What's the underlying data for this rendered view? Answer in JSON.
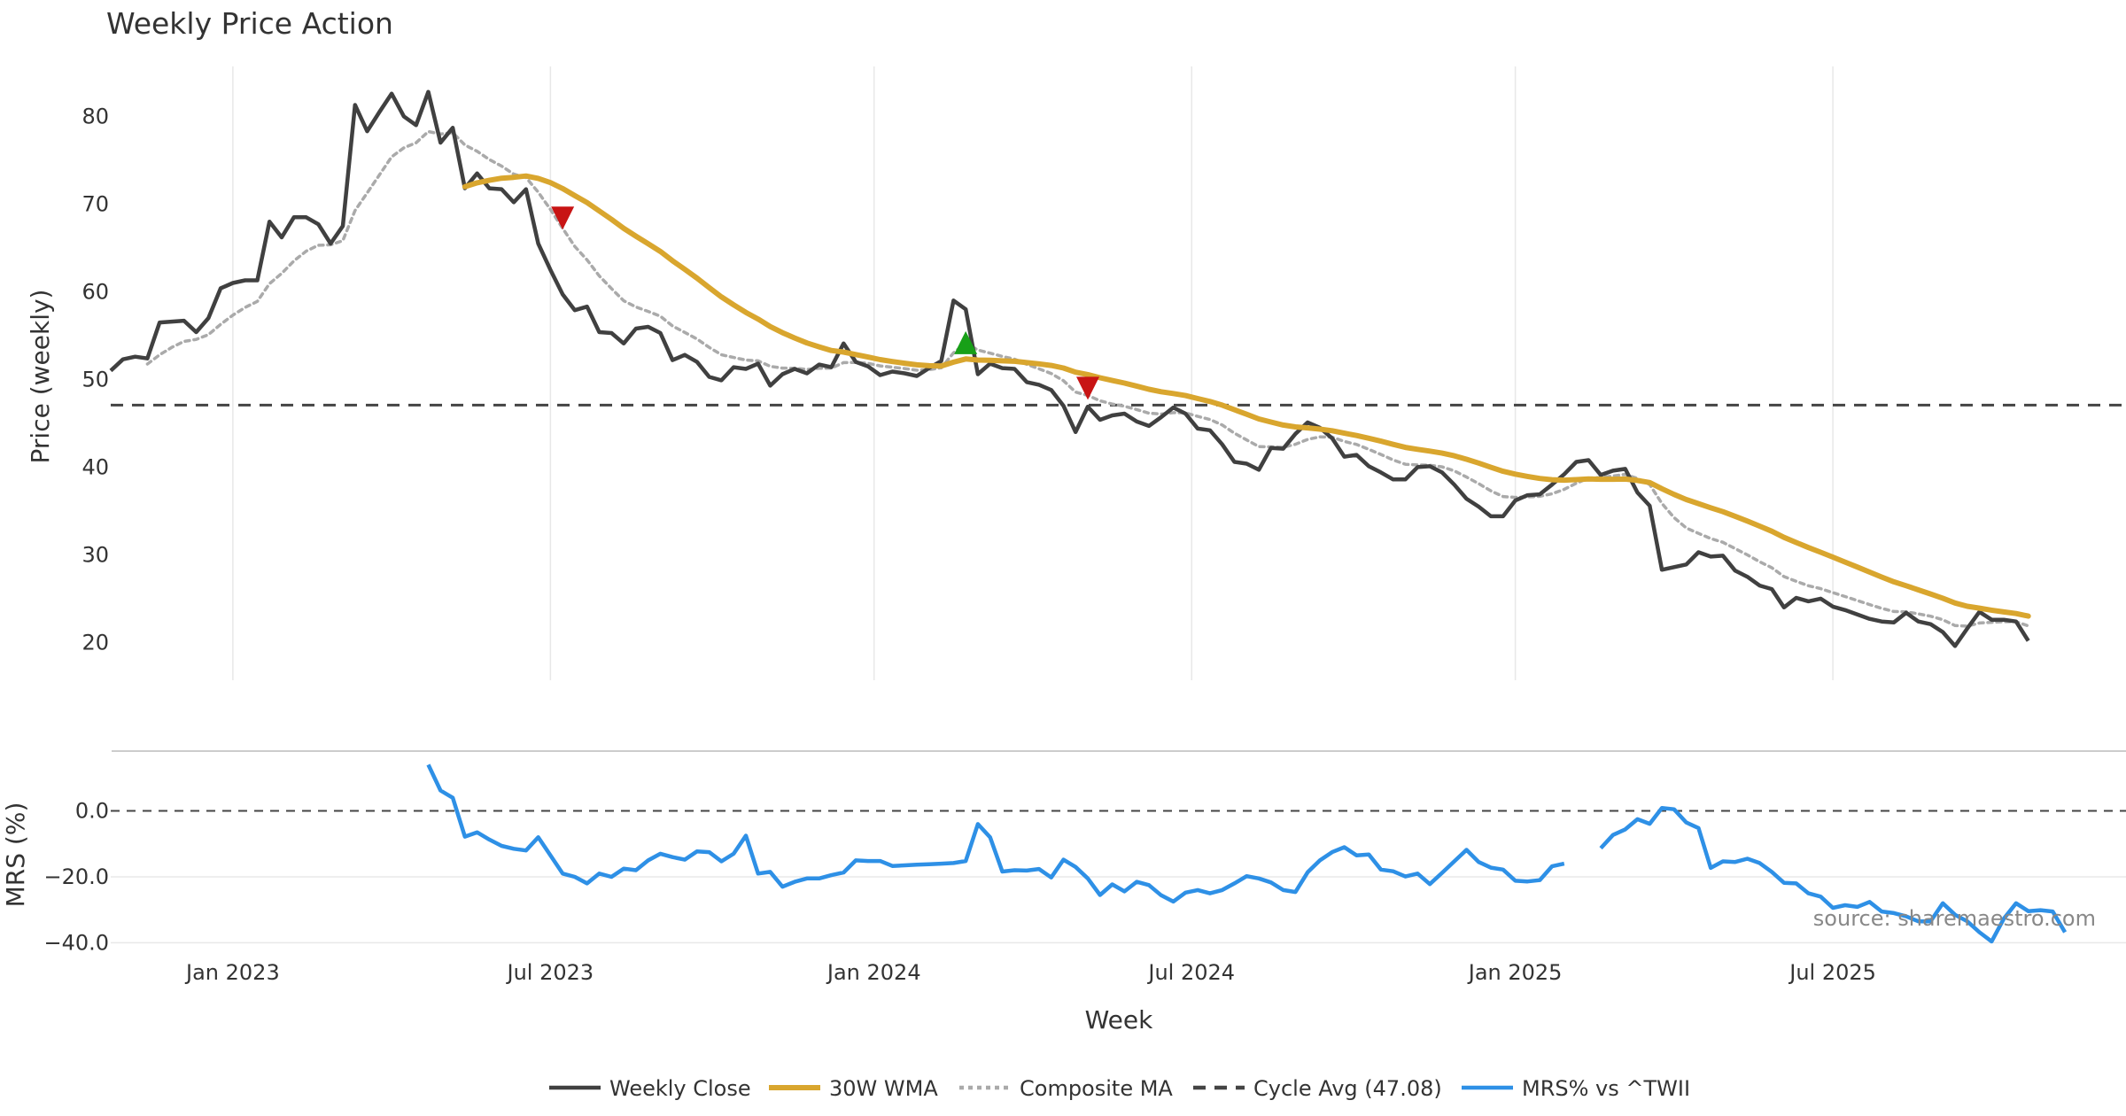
{
  "chart_data": {
    "type": "line",
    "title": "Weekly Price Action",
    "xlabel": "Week",
    "colors": {
      "close": "#404040",
      "wma": "#d9a62e",
      "composite": "#aaaaaa",
      "cycle": "#444444",
      "mrs": "#2e90e6",
      "sell_marker": "#c81414",
      "buy_marker": "#18a018"
    },
    "x_ticks": [
      {
        "label": "Jan 2023",
        "week": 10
      },
      {
        "label": "Jul 2023",
        "week": 36
      },
      {
        "label": "Jan 2024",
        "week": 62.5
      },
      {
        "label": "Jul 2024",
        "week": 88.5
      },
      {
        "label": "Jan 2025",
        "week": 115
      },
      {
        "label": "Jul 2025",
        "week": 141
      }
    ],
    "price_panel": {
      "ylabel": "Price (weekly)",
      "ylim": [
        15.5,
        86
      ],
      "yticks": [
        20,
        30,
        40,
        50,
        60,
        70,
        80
      ],
      "weekly_close": [
        51,
        52.3,
        52.6,
        52.4,
        56.5,
        56.6,
        56.7,
        55.4,
        57,
        60.4,
        61,
        61.3,
        61.3,
        68,
        66.2,
        68.5,
        68.5,
        67.7,
        65.5,
        67.5,
        81.3,
        78.3,
        80.5,
        82.6,
        80,
        79,
        82.8,
        77,
        78.7,
        71.8,
        73.5,
        71.8,
        71.7,
        70.2,
        71.7,
        65.5,
        62.5,
        59.7,
        57.9,
        58.3,
        55.4,
        55.3,
        54.1,
        55.8,
        56,
        55.3,
        52.2,
        52.8,
        52,
        50.3,
        49.9,
        51.4,
        51.2,
        51.8,
        49.3,
        50.6,
        51.2,
        50.7,
        51.7,
        51.4,
        54.1,
        52,
        51.5,
        50.5,
        50.9,
        50.7,
        50.4,
        51.3,
        52.1,
        59,
        58,
        50.6,
        51.8,
        51.3,
        51.2,
        49.7,
        49.4,
        48.8,
        47,
        44,
        46.9,
        45.4,
        45.9,
        46.1,
        45.2,
        44.7,
        45.7,
        46.8,
        46.1,
        44.4,
        44.2,
        42.6,
        40.6,
        40.4,
        39.7,
        42.2,
        42.1,
        43.8,
        45.1,
        44.5,
        43.3,
        41.2,
        41.4,
        40.1,
        39.4,
        38.6,
        38.6,
        40,
        40.1,
        39.4,
        38,
        36.4,
        35.5,
        34.4,
        34.4,
        36.2,
        36.8,
        36.9,
        38,
        39.2,
        40.6,
        40.8,
        39.1,
        39.6,
        39.8,
        37.1,
        35.6,
        28.3,
        28.6,
        28.9,
        30.3,
        29.8,
        29.9,
        28.2,
        27.5,
        26.5,
        26.1,
        24,
        25.1,
        24.7,
        25,
        24.1,
        23.7,
        23.2,
        22.7,
        22.4,
        22.3,
        23.4,
        22.4,
        22.1,
        21.2,
        19.6,
        21.6,
        23.5,
        22.6,
        22.6,
        22.4,
        20.2
      ]
    },
    "mrs_panel": {
      "ylabel": "MRS (%)",
      "ylim": [
        -41.5,
        16
      ],
      "yticks": [
        0,
        -20,
        -40
      ],
      "ytick_labels": [
        "0.0",
        "−20.0",
        "−40.0"
      ],
      "mrs_start_week": 26,
      "mrs_values": [
        14,
        6.2,
        4,
        -7.8,
        -6.5,
        -8.7,
        -10.6,
        -11.5,
        -12,
        -8,
        -13.5,
        -19,
        -20,
        -22,
        -19,
        -20,
        -17.5,
        -18,
        -15,
        -13,
        -14,
        -14.8,
        -12.3,
        -12.5,
        -15.3,
        -13,
        -7.5,
        -19,
        -18.5,
        -23,
        -21.5,
        -20.5,
        -20.5,
        -19.5,
        -18.7,
        -15,
        -15.2,
        -15.2,
        -16.7,
        -16.5,
        -16.3,
        -16.2,
        -16,
        -15.8,
        -15.2,
        -4,
        -8,
        -18.4,
        -18,
        -18.1,
        -17.6,
        -20.2,
        -14.8,
        -17,
        -20.5,
        -25.5,
        -22.3,
        -24.4,
        -21.5,
        -22.5,
        -25.6,
        -27.5,
        -24.8,
        -24,
        -25,
        -24,
        -22,
        -19.8,
        -20.5,
        -21.7,
        -24,
        -24.6,
        -18.6,
        -15,
        -12.5,
        -11,
        -13.5,
        -13.2,
        -17.8,
        -18.3,
        -19.9,
        -19,
        -22.2,
        -18.8,
        -15.3,
        -11.8,
        -15.5,
        -17.2,
        -17.8,
        -21.2,
        -21.4,
        -21,
        -16.8,
        -16,
        null,
        null,
        -11.3,
        -7.3,
        -5.6,
        -2.5,
        -3.9,
        0.9,
        0.5,
        -3.5,
        -5.2,
        -17.3,
        -15.3,
        -15.5,
        -14.5,
        -15.8,
        -18.5,
        -21.8,
        -22,
        -25,
        -26,
        -29.4,
        -28.6,
        -29.1,
        -27.6,
        -30.5,
        -31,
        -32,
        -33.5,
        -33.5,
        -28,
        -31.5,
        -33.5,
        -36.8,
        -39.6,
        -32.7,
        -28,
        -30.4,
        -30.1,
        -30.5,
        -36.8
      ],
      "source": "source: sharemaestro.com"
    },
    "cycle_avg": 47.08,
    "markers": [
      {
        "type": "sell",
        "week": 37,
        "value": 68.4
      },
      {
        "type": "buy",
        "week": 70,
        "value": 54.2
      },
      {
        "type": "sell",
        "week": 80,
        "value": 49
      }
    ],
    "legend": [
      {
        "key": "close",
        "label": "Weekly Close",
        "style": "solid"
      },
      {
        "key": "wma",
        "label": "30W WMA",
        "style": "solid"
      },
      {
        "key": "composite",
        "label": "Composite MA",
        "style": "dotted"
      },
      {
        "key": "cycle",
        "label": "Cycle Avg (47.08)",
        "style": "dashed"
      },
      {
        "key": "mrs",
        "label": "MRS% vs ^TWII",
        "style": "solid"
      }
    ]
  }
}
